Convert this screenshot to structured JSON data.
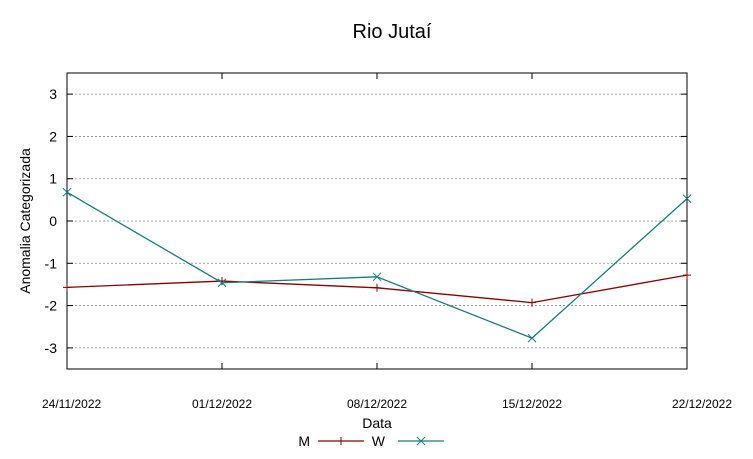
{
  "chart_data": {
    "type": "line",
    "title": "Rio Jutaí",
    "xlabel": "Data",
    "ylabel": "Anomalia Categorizada",
    "categories": [
      "24/11/2022",
      "01/12/2022",
      "08/12/2022",
      "15/12/2022",
      "22/12/2022"
    ],
    "yticks": [
      "-3",
      "-2",
      "-1",
      "0",
      "1",
      "2",
      "3"
    ],
    "ylim": [
      -3.5,
      3.5
    ],
    "grid": true,
    "legend_position": "bottom",
    "series": [
      {
        "name": "M",
        "color": "#8b0000",
        "marker": "plus",
        "values": [
          -1.57,
          -1.42,
          -1.58,
          -1.93,
          -1.28
        ]
      },
      {
        "name": "W",
        "color": "#1b7a7a",
        "marker": "cross",
        "values": [
          0.68,
          -1.46,
          -1.32,
          -2.77,
          0.53
        ]
      }
    ]
  }
}
